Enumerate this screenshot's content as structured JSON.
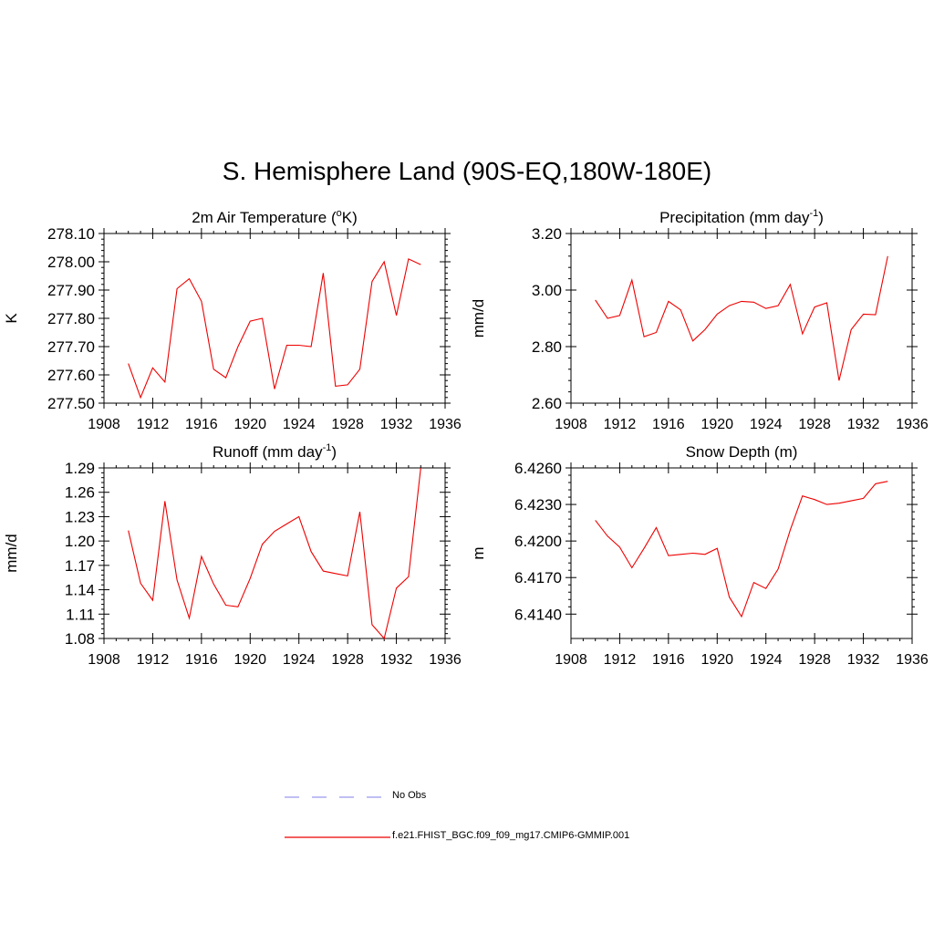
{
  "title": "S. Hemisphere Land (90S-EQ,180W-180E)",
  "legend": [
    {
      "label": "No Obs",
      "color": "#9999ee",
      "style": "dashed"
    },
    {
      "label": "f.e21.FHIST_BGC.f09_f09_mg17.CMIP6-GMMIP.001",
      "color": "#ee0000",
      "style": "solid"
    }
  ],
  "chart_data": [
    {
      "type": "line",
      "title": "2m Air Temperature (",
      "title_sup": "o",
      "title_tail": "K)",
      "ylabel": "K",
      "xlim": [
        1908,
        1936
      ],
      "ylim": [
        277.5,
        278.1
      ],
      "xticks": [
        1908,
        1912,
        1916,
        1920,
        1924,
        1928,
        1932,
        1936
      ],
      "xtick_labels": [
        "1908",
        "1912",
        "1916",
        "1920",
        "1924",
        "1928",
        "1932",
        "1936"
      ],
      "yticks": [
        277.5,
        277.6,
        277.7,
        277.8,
        277.9,
        278.0,
        278.1
      ],
      "ytick_labels": [
        "277.50",
        "277.60",
        "277.70",
        "277.80",
        "277.90",
        "278.00",
        "278.10"
      ],
      "series": [
        {
          "name": "f.e21.FHIST_BGC.f09_f09_mg17.CMIP6-GMMIP.001",
          "color": "#ee0000",
          "x": [
            1910,
            1911,
            1912,
            1913,
            1914,
            1915,
            1916,
            1917,
            1918,
            1919,
            1920,
            1921,
            1922,
            1923,
            1924,
            1925,
            1926,
            1927,
            1928,
            1929,
            1930,
            1931,
            1932,
            1933,
            1934
          ],
          "values": [
            277.64,
            277.52,
            277.625,
            277.575,
            277.905,
            277.94,
            277.86,
            277.62,
            277.59,
            277.7,
            277.79,
            277.8,
            277.55,
            277.705,
            277.705,
            277.7,
            277.96,
            277.56,
            277.565,
            277.62,
            277.93,
            278.0,
            277.81,
            278.01,
            277.99
          ]
        }
      ]
    },
    {
      "type": "line",
      "title": "Precipitation (mm day",
      "title_sup": "-1",
      "title_tail": ")",
      "ylabel": "mm/d",
      "xlim": [
        1908,
        1936
      ],
      "ylim": [
        2.6,
        3.2
      ],
      "xticks": [
        1908,
        1912,
        1916,
        1920,
        1924,
        1928,
        1932,
        1936
      ],
      "xtick_labels": [
        "1908",
        "1912",
        "1916",
        "1920",
        "1924",
        "1928",
        "1932",
        "1936"
      ],
      "yticks": [
        2.6,
        2.8,
        3.0,
        3.2
      ],
      "ytick_labels": [
        "2.60",
        "2.80",
        "3.00",
        "3.20"
      ],
      "series": [
        {
          "name": "f.e21.FHIST_BGC.f09_f09_mg17.CMIP6-GMMIP.001",
          "color": "#ee0000",
          "x": [
            1910,
            1911,
            1912,
            1913,
            1914,
            1915,
            1916,
            1917,
            1918,
            1919,
            1920,
            1921,
            1922,
            1923,
            1924,
            1925,
            1926,
            1927,
            1928,
            1929,
            1930,
            1931,
            1932,
            1933,
            1934
          ],
          "values": [
            2.965,
            2.9,
            2.91,
            3.035,
            2.835,
            2.85,
            2.96,
            2.93,
            2.82,
            2.86,
            2.915,
            2.945,
            2.96,
            2.957,
            2.935,
            2.945,
            3.02,
            2.845,
            2.94,
            2.955,
            2.68,
            2.86,
            2.915,
            2.913,
            3.12
          ]
        }
      ]
    },
    {
      "type": "line",
      "title": "Runoff (mm day",
      "title_sup": "-1",
      "title_tail": ")",
      "ylabel": "mm/d",
      "xlim": [
        1908,
        1936
      ],
      "ylim": [
        1.08,
        1.29
      ],
      "xticks": [
        1908,
        1912,
        1916,
        1920,
        1924,
        1928,
        1932,
        1936
      ],
      "xtick_labels": [
        "1908",
        "1912",
        "1916",
        "1920",
        "1924",
        "1928",
        "1932",
        "1936"
      ],
      "yticks": [
        1.08,
        1.11,
        1.14,
        1.17,
        1.2,
        1.23,
        1.26,
        1.29
      ],
      "ytick_labels": [
        "1.08",
        "1.11",
        "1.14",
        "1.17",
        "1.20",
        "1.23",
        "1.26",
        "1.29"
      ],
      "series": [
        {
          "name": "f.e21.FHIST_BGC.f09_f09_mg17.CMIP6-GMMIP.001",
          "color": "#ee0000",
          "x": [
            1910,
            1911,
            1912,
            1913,
            1914,
            1915,
            1916,
            1917,
            1918,
            1919,
            1920,
            1921,
            1922,
            1923,
            1924,
            1925,
            1926,
            1927,
            1928,
            1929,
            1930,
            1931,
            1932,
            1933,
            1934
          ],
          "values": [
            1.213,
            1.148,
            1.127,
            1.249,
            1.152,
            1.105,
            1.181,
            1.147,
            1.121,
            1.119,
            1.154,
            1.196,
            1.212,
            1.221,
            1.23,
            1.187,
            1.163,
            1.16,
            1.157,
            1.236,
            1.097,
            1.08,
            1.142,
            1.156,
            1.29
          ]
        }
      ]
    },
    {
      "type": "line",
      "title": "Snow Depth (m)",
      "title_sup": "",
      "title_tail": "",
      "ylabel": "m",
      "xlim": [
        1908,
        1936
      ],
      "ylim": [
        6.412,
        6.426
      ],
      "xticks": [
        1908,
        1912,
        1916,
        1920,
        1924,
        1928,
        1932,
        1936
      ],
      "xtick_labels": [
        "1908",
        "1912",
        "1916",
        "1920",
        "1924",
        "1928",
        "1932",
        "1936"
      ],
      "yticks": [
        6.414,
        6.417,
        6.42,
        6.423,
        6.426
      ],
      "ytick_labels": [
        "6.4140",
        "6.4170",
        "6.4200",
        "6.4230",
        "6.4260"
      ],
      "series": [
        {
          "name": "f.e21.FHIST_BGC.f09_f09_mg17.CMIP6-GMMIP.001",
          "color": "#ee0000",
          "x": [
            1910,
            1911,
            1912,
            1913,
            1914,
            1915,
            1916,
            1917,
            1918,
            1919,
            1920,
            1921,
            1922,
            1923,
            1924,
            1925,
            1926,
            1927,
            1928,
            1929,
            1930,
            1931,
            1932,
            1933,
            1934
          ],
          "values": [
            6.4217,
            6.4204,
            6.4195,
            6.4178,
            6.4194,
            6.4211,
            6.4188,
            6.4189,
            6.419,
            6.4189,
            6.4194,
            6.4154,
            6.4138,
            6.4166,
            6.4161,
            6.4177,
            6.4209,
            6.4237,
            6.4234,
            6.423,
            6.4231,
            6.4233,
            6.4235,
            6.4247,
            6.4249
          ]
        }
      ]
    }
  ]
}
